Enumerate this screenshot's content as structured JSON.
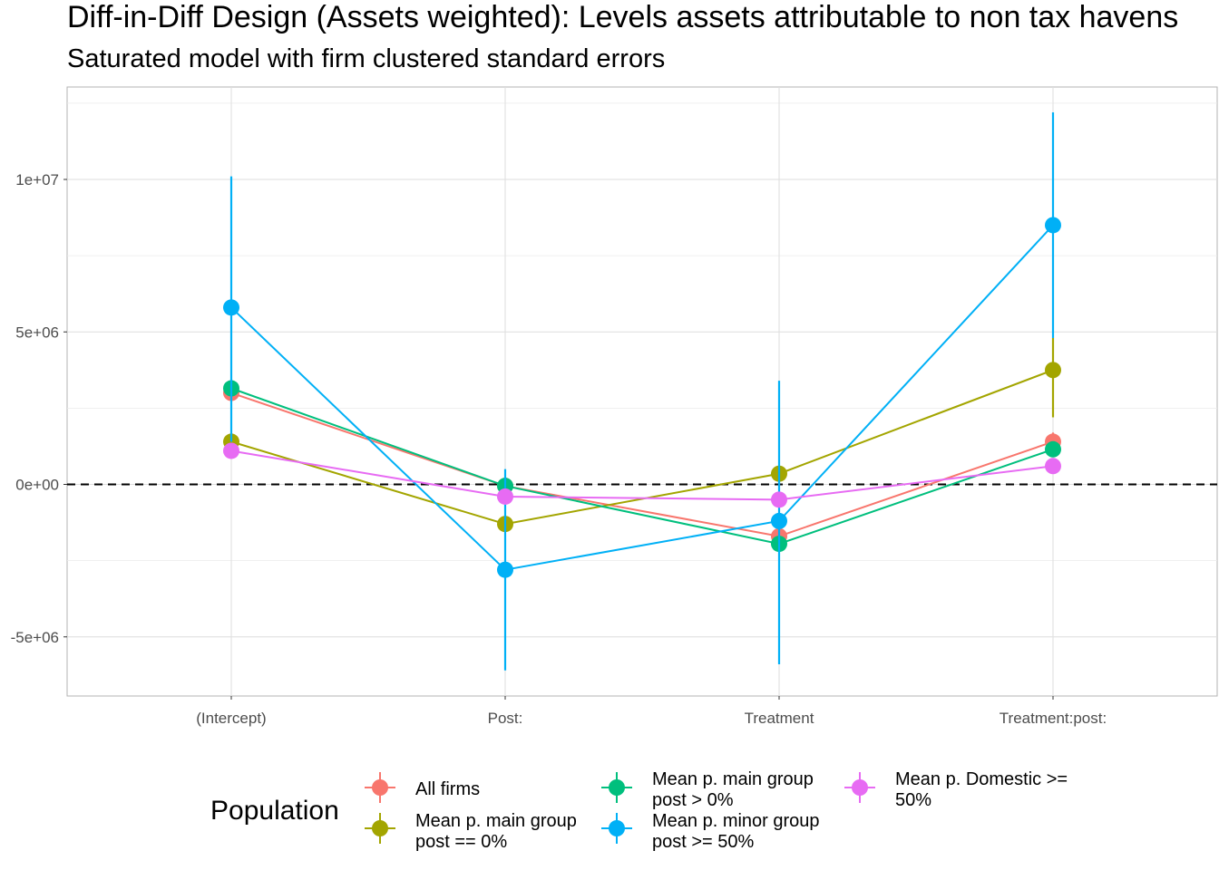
{
  "chart_data": {
    "type": "line",
    "title": "Diff-in-Diff Design (Assets weighted): Levels assets attributable to non tax havens",
    "subtitle": "Saturated model with firm clustered standard errors",
    "xlabel": "",
    "ylabel": "",
    "categories": [
      "(Intercept)",
      "Post:",
      "Treatment",
      "Treatment:post:"
    ],
    "ylim": [
      -7000000,
      12500000
    ],
    "yticks": [
      -5000000,
      0,
      5000000,
      10000000
    ],
    "ytick_labels": [
      "-5e+06",
      "0e+00",
      "5e+06",
      "1e+07"
    ],
    "reference_line": {
      "y": 0,
      "style": "dashed"
    },
    "grid": true,
    "legend": {
      "title": "Population",
      "position": "bottom",
      "entries": [
        [
          "All firms"
        ],
        [
          "Mean p. main group",
          "post == 0%"
        ],
        [
          "Mean p. main group",
          "post > 0%"
        ],
        [
          "Mean p. minor group",
          "post >= 50%"
        ],
        [
          "Mean p. Domestic >=",
          "50%"
        ]
      ]
    },
    "series": [
      {
        "name": "All firms",
        "color": "#F8766D",
        "values": [
          3000000,
          -50000,
          -1700000,
          1400000
        ],
        "lower": [
          2800000,
          -100000,
          -1900000,
          1100000
        ],
        "upper": [
          3200000,
          0,
          -1500000,
          1700000
        ]
      },
      {
        "name": "Mean p. main group post == 0%",
        "color": "#A3A500",
        "values": [
          1400000,
          -1300000,
          350000,
          3750000
        ],
        "lower": [
          1300000,
          -1400000,
          250000,
          2200000
        ],
        "upper": [
          1500000,
          -1200000,
          450000,
          4800000
        ]
      },
      {
        "name": "Mean p. main group post > 0%",
        "color": "#00BF7D",
        "values": [
          3150000,
          -50000,
          -1950000,
          1150000
        ],
        "lower": [
          3000000,
          -200000,
          -2200000,
          1000000
        ],
        "upper": [
          3300000,
          100000,
          -1700000,
          1300000
        ]
      },
      {
        "name": "Mean p. minor group post >= 50%",
        "color": "#00B0F6",
        "values": [
          5800000,
          -2800000,
          -1200000,
          8500000
        ],
        "lower": [
          1400000,
          -6100000,
          -5900000,
          4800000
        ],
        "upper": [
          10100000,
          500000,
          3400000,
          12200000
        ]
      },
      {
        "name": "Mean p. Domestic >= 50%",
        "color": "#E76BF3",
        "values": [
          1100000,
          -400000,
          -500000,
          600000
        ],
        "lower": [
          1000000,
          -500000,
          -600000,
          500000
        ],
        "upper": [
          1200000,
          -300000,
          -400000,
          700000
        ]
      }
    ]
  }
}
